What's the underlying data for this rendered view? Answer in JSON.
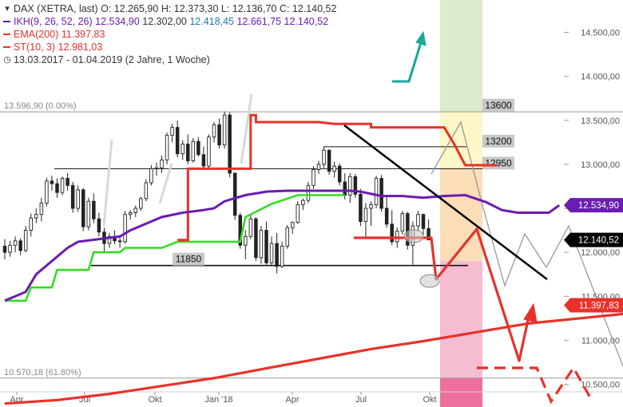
{
  "header": {
    "symbol": "DAX (XETRA, last)",
    "ohlc": "O: 12.265,90  H: 12.373,30  L: 12.136,70  C: 12.140,52",
    "ikh_label": "IKH(9, 26, 52, 26)",
    "ikh_values": [
      "12.534,90",
      "12.302,00",
      "12.418,45",
      "12.661,75",
      "12.140,52"
    ],
    "ema_label": "EMA(200)",
    "ema_value": "11.397,83",
    "st_label": "ST(10, 3)",
    "st_value": "12.981,03",
    "period": "13.03.2017 - 01.04.2019",
    "period_detail": "(2 Jahre, 1 Woche)"
  },
  "colors": {
    "ikh": "#6a1bb0",
    "ema": "#e8312a",
    "st": "#e8312a",
    "st_up": "#33dd22",
    "arrow_up": "#17a89a",
    "zone_green": "#dcebcc",
    "zone_yellow": "#fdf6c8",
    "zone_orange": "#fbddb8",
    "zone_pink": "#f6bcd2",
    "zone_magenta": "#ee6f9e"
  },
  "chart_data": {
    "type": "candlestick",
    "y_axis": {
      "min": 10450,
      "max": 14650,
      "side": "right"
    },
    "y_ticks": [
      {
        "value": 14500,
        "label": "14.500,00"
      },
      {
        "value": 14000,
        "label": "14.000,00"
      },
      {
        "value": 13500,
        "label": "13.500,00"
      },
      {
        "value": 13000,
        "label": "13.000,00"
      },
      {
        "value": 12500,
        "label": "12.500,00"
      },
      {
        "value": 12000,
        "label": "12.000,00"
      },
      {
        "value": 11500,
        "label": "11.500,00"
      },
      {
        "value": 11000,
        "label": "11.000,00"
      },
      {
        "value": 10500,
        "label": "10.500,00"
      }
    ],
    "x_ticks": [
      "Apr",
      "Jul",
      "Okt",
      "Jan '18",
      "Apr",
      "Jul",
      "Okt"
    ],
    "price_tags": [
      {
        "value": 12534.9,
        "label": "12.534,90",
        "color": "#6a1bb0"
      },
      {
        "value": 12140.52,
        "label": "12.140,52",
        "color": "#000000"
      },
      {
        "value": 11397.83,
        "label": "11.397,83",
        "color": "#e8312a"
      }
    ],
    "levels": [
      {
        "value": 13596.9,
        "label": "13.596,90 (0.00%)"
      },
      {
        "value": 10570.18,
        "label": "10.570,18 (61.80%)"
      },
      {
        "value": 13600,
        "label": "13600"
      },
      {
        "value": 13200,
        "label": "13200"
      },
      {
        "value": 12950,
        "label": "12950"
      },
      {
        "value": 11850,
        "label": "11850"
      }
    ],
    "candles": [
      [
        12070,
        12150,
        11920,
        12000
      ],
      [
        12000,
        12130,
        11950,
        12080
      ],
      [
        12080,
        12180,
        12000,
        12130
      ],
      [
        12130,
        12160,
        11970,
        12020
      ],
      [
        12020,
        12300,
        12000,
        12250
      ],
      [
        12250,
        12440,
        12180,
        12390
      ],
      [
        12390,
        12500,
        12330,
        12430
      ],
      [
        12430,
        12620,
        12350,
        12560
      ],
      [
        12560,
        12850,
        12520,
        12810
      ],
      [
        12810,
        12870,
        12700,
        12780
      ],
      [
        12780,
        12840,
        12620,
        12680
      ],
      [
        12680,
        12860,
        12650,
        12840
      ],
      [
        12840,
        12900,
        12700,
        12760
      ],
      [
        12760,
        12800,
        12450,
        12500
      ],
      [
        12500,
        12760,
        12460,
        12710
      ],
      [
        12710,
        12730,
        12240,
        12290
      ],
      [
        12290,
        12620,
        12250,
        12580
      ],
      [
        12580,
        12670,
        12330,
        12380
      ],
      [
        12380,
        12450,
        12180,
        12230
      ],
      [
        12230,
        12280,
        12010,
        12100
      ],
      [
        12100,
        12220,
        12050,
        12180
      ],
      [
        12180,
        12250,
        12090,
        12130
      ],
      [
        12130,
        12170,
        12050,
        12120
      ],
      [
        12120,
        12470,
        12100,
        12430
      ],
      [
        12430,
        12480,
        12370,
        12450
      ],
      [
        12450,
        12530,
        12400,
        12500
      ],
      [
        12500,
        12630,
        12470,
        12610
      ],
      [
        12610,
        12830,
        12580,
        12790
      ],
      [
        12790,
        12990,
        12760,
        12950
      ],
      [
        12950,
        13020,
        12870,
        12960
      ],
      [
        12960,
        13100,
        12900,
        13050
      ],
      [
        13050,
        13360,
        13000,
        13330
      ],
      [
        13330,
        13460,
        13250,
        13420
      ],
      [
        13420,
        13500,
        13080,
        13120
      ],
      [
        13120,
        13270,
        13050,
        13230
      ],
      [
        13230,
        13340,
        13000,
        13040
      ],
      [
        13040,
        13300,
        13020,
        13260
      ],
      [
        13260,
        13310,
        13090,
        13110
      ],
      [
        13110,
        13200,
        12950,
        12980
      ],
      [
        12980,
        13340,
        12940,
        13310
      ],
      [
        13310,
        13480,
        13250,
        13450
      ],
      [
        13450,
        13520,
        13180,
        13220
      ],
      [
        13220,
        13600,
        13180,
        13560
      ],
      [
        13560,
        13590,
        12850,
        12900
      ],
      [
        12900,
        12900,
        12370,
        12420
      ],
      [
        12420,
        12450,
        12040,
        12080
      ],
      [
        12080,
        12250,
        11920,
        12180
      ],
      [
        12180,
        12420,
        12150,
        12380
      ],
      [
        12380,
        12400,
        11900,
        11940
      ],
      [
        11940,
        12300,
        11870,
        12250
      ],
      [
        12250,
        12350,
        11860,
        11880
      ],
      [
        11880,
        12180,
        11850,
        12100
      ],
      [
        12100,
        12220,
        11760,
        11840
      ],
      [
        11840,
        12120,
        11820,
        12070
      ],
      [
        12070,
        12310,
        12040,
        12280
      ],
      [
        12280,
        12350,
        12210,
        12340
      ],
      [
        12340,
        12580,
        12320,
        12540
      ],
      [
        12540,
        12610,
        12480,
        12590
      ],
      [
        12590,
        12800,
        12560,
        12760
      ],
      [
        12760,
        12980,
        12720,
        12940
      ],
      [
        12940,
        13040,
        12890,
        13000
      ],
      [
        13000,
        13200,
        12960,
        13160
      ],
      [
        13160,
        13170,
        12880,
        12920
      ],
      [
        12920,
        13030,
        12850,
        12980
      ],
      [
        12980,
        13010,
        12760,
        12800
      ],
      [
        12800,
        12900,
        12600,
        12650
      ],
      [
        12650,
        12900,
        12560,
        12860
      ],
      [
        12860,
        12890,
        12620,
        12660
      ],
      [
        12660,
        12720,
        12300,
        12350
      ],
      [
        12350,
        12560,
        12150,
        12500
      ],
      [
        12500,
        12580,
        12300,
        12540
      ],
      [
        12540,
        12870,
        12500,
        12840
      ],
      [
        12840,
        12880,
        12460,
        12500
      ],
      [
        12500,
        12640,
        12280,
        12320
      ],
      [
        12320,
        12480,
        12080,
        12120
      ],
      [
        12120,
        12280,
        12050,
        12240
      ],
      [
        12240,
        12470,
        12200,
        12440
      ],
      [
        12440,
        12460,
        12030,
        12080
      ],
      [
        12080,
        12350,
        11860,
        12300
      ],
      [
        12300,
        12470,
        12240,
        12430
      ],
      [
        12430,
        12440,
        12200,
        12270
      ],
      [
        12270,
        12373,
        12137,
        12141
      ]
    ],
    "ema200": [
      [
        0,
        10280
      ],
      [
        10,
        10320
      ],
      [
        20,
        10390
      ],
      [
        30,
        10480
      ],
      [
        40,
        10570
      ],
      [
        50,
        10680
      ],
      [
        60,
        10790
      ],
      [
        70,
        10900
      ],
      [
        80,
        10990
      ],
      [
        90,
        11090
      ],
      [
        100,
        11190
      ],
      [
        110,
        11250
      ],
      [
        115,
        11280
      ],
      [
        120,
        11310
      ],
      [
        130,
        11330
      ],
      [
        140,
        11340
      ],
      [
        150,
        11350
      ],
      [
        160,
        11380
      ],
      [
        170,
        11397.83
      ]
    ],
    "supertrend_down": [
      [
        33,
        12140
      ],
      [
        35,
        12140
      ],
      [
        35,
        12950
      ],
      [
        40,
        12950
      ],
      [
        40,
        12950
      ],
      [
        47,
        12950
      ],
      [
        47,
        13560
      ],
      [
        48,
        13560
      ],
      [
        48,
        13480
      ],
      [
        60,
        13480
      ],
      [
        63,
        13460
      ],
      [
        70,
        13460
      ],
      [
        70,
        13420
      ],
      [
        84,
        13420
      ],
      [
        86,
        13220
      ],
      [
        88,
        12990
      ],
      [
        94,
        12990
      ]
    ],
    "supertrend_up": [
      [
        0,
        11450
      ],
      [
        4,
        11450
      ],
      [
        5,
        11600
      ],
      [
        9,
        11600
      ],
      [
        10,
        11800
      ],
      [
        16,
        11800
      ],
      [
        17,
        12000
      ],
      [
        22,
        12000
      ],
      [
        23,
        12050
      ],
      [
        28,
        12050
      ],
      [
        30,
        12050
      ],
      [
        33,
        12120
      ],
      [
        45,
        12120
      ],
      [
        46,
        12400
      ],
      [
        51,
        12550
      ],
      [
        56,
        12650
      ],
      [
        62,
        12650
      ],
      [
        65,
        12650
      ]
    ],
    "ikh_line": [
      [
        0,
        11450
      ],
      [
        4,
        11550
      ],
      [
        6,
        11750
      ],
      [
        8,
        11850
      ],
      [
        10,
        11950
      ],
      [
        12,
        12050
      ],
      [
        14,
        12120
      ],
      [
        18,
        12150
      ],
      [
        22,
        12180
      ],
      [
        24,
        12250
      ],
      [
        28,
        12350
      ],
      [
        30,
        12400
      ],
      [
        34,
        12450
      ],
      [
        38,
        12480
      ],
      [
        40,
        12500
      ],
      [
        42,
        12580
      ],
      [
        46,
        12650
      ],
      [
        50,
        12690
      ],
      [
        54,
        12700
      ],
      [
        60,
        12700
      ],
      [
        66,
        12700
      ],
      [
        68,
        12690
      ],
      [
        72,
        12640
      ],
      [
        76,
        12640
      ],
      [
        80,
        12620
      ],
      [
        84,
        12640
      ],
      [
        88,
        12650
      ],
      [
        92,
        12570
      ],
      [
        95,
        12480
      ],
      [
        98,
        12450
      ],
      [
        104,
        12450
      ],
      [
        106,
        12534.9
      ]
    ],
    "st_projection": [
      [
        95,
        11850
      ],
      [
        104,
        11850
      ],
      [
        105,
        11850
      ],
      [
        106,
        11420
      ],
      [
        117,
        11960
      ],
      [
        124,
        10650
      ],
      [
        129,
        11100
      ]
    ],
    "st_projection_dashed": [
      [
        117,
        10550
      ],
      [
        126,
        10550
      ],
      [
        131,
        10420
      ],
      [
        138,
        10550
      ]
    ]
  }
}
